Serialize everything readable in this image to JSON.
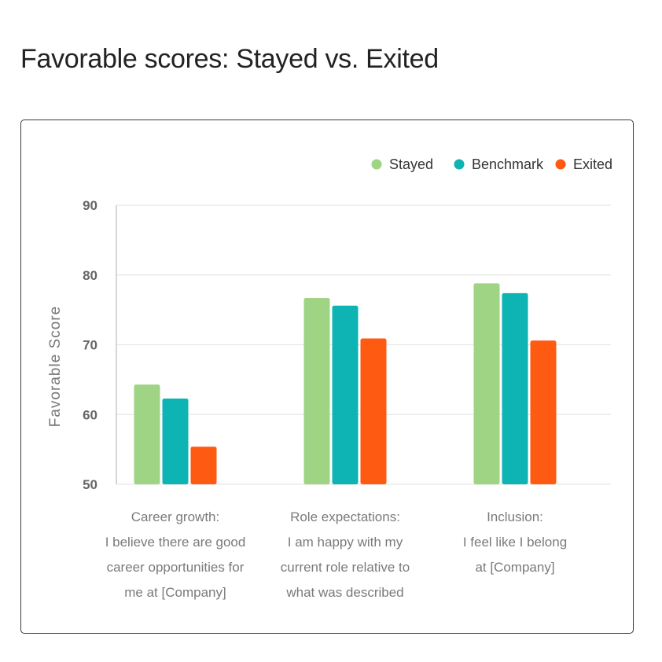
{
  "page": {
    "title": "Favorable scores: Stayed vs. Exited"
  },
  "chart_data": {
    "type": "bar",
    "title": "",
    "xlabel": "",
    "ylabel": "Favorable Score",
    "ylim": [
      50,
      90
    ],
    "yticks": [
      90,
      80,
      70,
      60,
      50
    ],
    "grid": true,
    "legend_position": "top-right",
    "categories": [
      [
        "Career growth:",
        "I believe there are good",
        "career opportunities for",
        "me at [Company]"
      ],
      [
        "Role expectations:",
        "I am happy with my",
        "current role relative to",
        "what was described"
      ],
      [
        "Inclusion:",
        "I feel like I belong",
        "at [Company]"
      ]
    ],
    "series": [
      {
        "name": "Stayed",
        "color": "#9ed483",
        "values": [
          64.3,
          76.7,
          78.8
        ]
      },
      {
        "name": "Benchmark",
        "color": "#0eb3b3",
        "values": [
          62.3,
          75.6,
          77.4
        ]
      },
      {
        "name": "Exited",
        "color": "#ff5a12",
        "values": [
          55.4,
          70.9,
          70.6
        ]
      }
    ]
  }
}
